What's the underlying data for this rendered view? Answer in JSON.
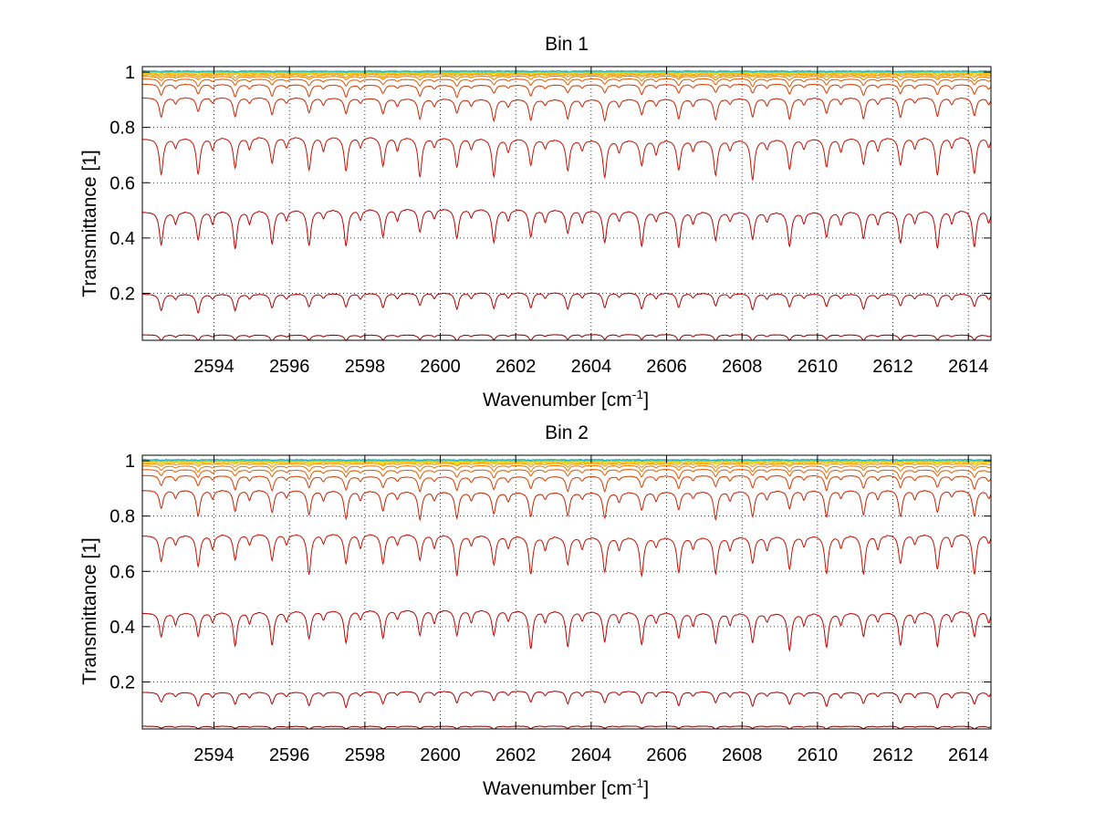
{
  "chart_data": [
    {
      "type": "line",
      "title": "Bin 1",
      "xlabel": "Wavenumber [cm",
      "xlabel_sup": "-1",
      "xlabel_tail": "]",
      "ylabel": "Transmittance [1]",
      "xlim": [
        2592.1,
        2614.6
      ],
      "ylim": [
        0.03,
        1.02
      ],
      "xticks": [
        2594,
        2596,
        2598,
        2600,
        2602,
        2604,
        2606,
        2608,
        2610,
        2612,
        2614
      ],
      "xtick_labels": [
        "2594",
        "2596",
        "2598",
        "2600",
        "2602",
        "2604",
        "2606",
        "2608",
        "2610",
        "2612",
        "2614"
      ],
      "yticks": [
        0.2,
        0.4,
        0.6,
        0.8,
        1
      ],
      "ytick_labels": [
        "0.2",
        "0.4",
        "0.6",
        "0.8",
        "1"
      ],
      "grid": true,
      "line_spacing_cm1": 0.98,
      "first_line_cm1": 2592.6,
      "series": [
        {
          "baseline": 0.05,
          "depth": 0.02,
          "color": "#8b0000"
        },
        {
          "baseline": 0.2,
          "depth": 0.06,
          "color": "#b00000"
        },
        {
          "baseline": 0.5,
          "depth": 0.12,
          "color": "#c00000"
        },
        {
          "baseline": 0.76,
          "depth": 0.13,
          "color": "#c81000"
        },
        {
          "baseline": 0.905,
          "depth": 0.07,
          "color": "#cc2000"
        },
        {
          "baseline": 0.955,
          "depth": 0.04,
          "color": "#d83a00"
        },
        {
          "baseline": 0.975,
          "depth": 0.025,
          "color": "#e05a00"
        },
        {
          "baseline": 0.985,
          "depth": 0.015,
          "color": "#e87800"
        },
        {
          "baseline": 0.991,
          "depth": 0.009,
          "color": "#f09000"
        },
        {
          "baseline": 0.995,
          "depth": 0.005,
          "color": "#f5b000"
        },
        {
          "baseline": 0.998,
          "depth": 0.003,
          "color": "#f0d000"
        },
        {
          "baseline": 1.0,
          "depth": 0.002,
          "color": "#c8e000"
        },
        {
          "baseline": 1.002,
          "depth": 0.002,
          "color": "#40c8a0"
        },
        {
          "baseline": 1.004,
          "depth": 0.002,
          "color": "#20b0d0"
        }
      ]
    },
    {
      "type": "line",
      "title": "Bin 2",
      "xlabel": "Wavenumber [cm",
      "xlabel_sup": "-1",
      "xlabel_tail": "]",
      "ylabel": "Transmittance [1]",
      "xlim": [
        2592.1,
        2614.6
      ],
      "ylim": [
        0.03,
        1.02
      ],
      "xticks": [
        2594,
        2596,
        2598,
        2600,
        2602,
        2604,
        2606,
        2608,
        2610,
        2612,
        2614
      ],
      "xtick_labels": [
        "2594",
        "2596",
        "2598",
        "2600",
        "2602",
        "2604",
        "2606",
        "2608",
        "2610",
        "2612",
        "2614"
      ],
      "yticks": [
        0.2,
        0.4,
        0.6,
        0.8,
        1
      ],
      "ytick_labels": [
        "0.2",
        "0.4",
        "0.6",
        "0.8",
        "1"
      ],
      "grid": true,
      "line_spacing_cm1": 0.98,
      "first_line_cm1": 2592.6,
      "series": [
        {
          "baseline": 0.04,
          "depth": 0.01,
          "color": "#8b0000"
        },
        {
          "baseline": 0.165,
          "depth": 0.05,
          "color": "#b00000"
        },
        {
          "baseline": 0.455,
          "depth": 0.12,
          "color": "#c00000"
        },
        {
          "baseline": 0.73,
          "depth": 0.13,
          "color": "#c81000"
        },
        {
          "baseline": 0.89,
          "depth": 0.09,
          "color": "#cc2000"
        },
        {
          "baseline": 0.945,
          "depth": 0.05,
          "color": "#d83a00"
        },
        {
          "baseline": 0.968,
          "depth": 0.03,
          "color": "#e05a00"
        },
        {
          "baseline": 0.982,
          "depth": 0.02,
          "color": "#e87800"
        },
        {
          "baseline": 0.99,
          "depth": 0.012,
          "color": "#f09000"
        },
        {
          "baseline": 0.995,
          "depth": 0.008,
          "color": "#f5b000"
        },
        {
          "baseline": 0.998,
          "depth": 0.004,
          "color": "#f0d000"
        },
        {
          "baseline": 1.0,
          "depth": 0.003,
          "color": "#c8e000"
        },
        {
          "baseline": 1.002,
          "depth": 0.002,
          "color": "#40c8a0"
        },
        {
          "baseline": 1.004,
          "depth": 0.002,
          "color": "#20b0d0"
        }
      ]
    }
  ]
}
